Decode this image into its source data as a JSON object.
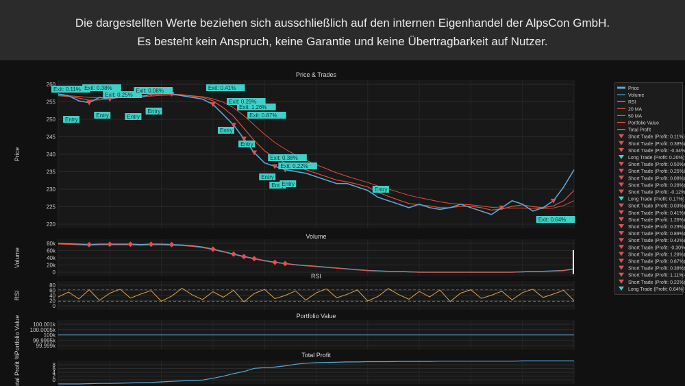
{
  "banner": {
    "line1": "Die dargestellten Werte beziehen sich ausschließlich auf den internen Eigenhandel der AlpsCon GmbH.",
    "line2": "Es besteht kein Anspruch, keine Garantie und keine Übertragbarkeit auf Nutzer."
  },
  "colors": {
    "price": "#5aa8d8",
    "ma20": "#e0503c",
    "ma50": "#e0503c",
    "volume": "#5aa8d8",
    "rsi": "#e0a050",
    "trade_box": "#3fd0c8",
    "sell_marker": "#e05050",
    "portfolio": "#5aa8d8",
    "profit": "#5aa8d8"
  },
  "chart_data": [
    {
      "type": "line",
      "title": "Price & Trades",
      "ylabel": "Price",
      "yticks": [
        "260",
        "255",
        "250",
        "245",
        "240",
        "235",
        "230",
        "225",
        "220"
      ],
      "ylim": [
        218,
        261
      ],
      "x": [
        0,
        2,
        4,
        6,
        8,
        10,
        12,
        14,
        16,
        18,
        20,
        22,
        24,
        26,
        28,
        30,
        32,
        34,
        36,
        38,
        40,
        42,
        44,
        46,
        48,
        50,
        52,
        54,
        56,
        58,
        60,
        62,
        64,
        66,
        68,
        70,
        72,
        74,
        76,
        78,
        80,
        82,
        84,
        86,
        88,
        90,
        92,
        94,
        96,
        98,
        100
      ],
      "series": [
        {
          "name": "Price",
          "values": [
            257,
            256.5,
            255,
            254.5,
            256,
            255.5,
            256.5,
            257,
            256,
            257,
            257.5,
            257,
            256.5,
            256,
            255.5,
            254,
            251,
            248,
            244,
            240,
            237,
            236,
            235,
            234.5,
            234,
            233,
            232,
            231,
            231,
            230,
            229,
            227,
            226,
            225,
            224,
            225,
            224,
            223.5,
            224,
            225,
            224,
            223,
            222,
            224,
            226,
            225,
            223,
            224,
            226,
            230,
            235
          ]
        },
        {
          "name": "20 MA",
          "values": [
            256.5,
            256.3,
            255.8,
            255.2,
            255.3,
            255.6,
            256,
            256.4,
            256.5,
            256.8,
            257,
            257,
            256.8,
            256.4,
            256,
            255,
            253,
            250.5,
            247,
            243.5,
            240.5,
            238.5,
            237,
            236,
            235,
            234,
            233,
            232,
            231.5,
            230.8,
            230,
            228.5,
            227.3,
            226.2,
            225.2,
            224.8,
            224.5,
            224,
            224,
            224.4,
            224.4,
            224,
            223.3,
            223.6,
            224.4,
            224.8,
            224.3,
            224,
            224.5,
            226,
            229
          ]
        },
        {
          "name": "50 MA",
          "values": [
            256.6,
            256.5,
            256.3,
            256,
            255.9,
            255.9,
            256,
            256.1,
            256.2,
            256.4,
            256.6,
            256.7,
            256.7,
            256.5,
            256.2,
            255.6,
            254.6,
            253,
            250.7,
            248,
            245.3,
            242.9,
            241,
            239.3,
            237.8,
            236.5,
            235.3,
            234.1,
            233.1,
            232.2,
            231.3,
            230.3,
            229.4,
            228.5,
            227.6,
            226.9,
            226.3,
            225.7,
            225.2,
            225,
            224.8,
            224.5,
            224.1,
            223.9,
            223.9,
            223.9,
            223.8,
            223.7,
            223.9,
            224.6,
            226
          ]
        }
      ],
      "labels": {
        "entry": "Entry",
        "exits": [
          "Exit: 0.11%",
          "Exit: 0.38%",
          "Exit: 0.25%",
          "Exit: 0.08%",
          "Exit: 0.41%",
          "Exit: 0.29%",
          "Exit: 1.26%",
          "Exit: 0.87%",
          "Exit: 0.38%",
          "Exit: 0.22%",
          "Exit: 0.64%"
        ]
      }
    },
    {
      "type": "line",
      "title": "Volume",
      "ylabel": "Volume",
      "yticks": [
        "80k",
        "60k",
        "40k",
        "20k",
        "0"
      ],
      "ylim": [
        0,
        90
      ],
      "values": [
        80,
        79,
        78,
        77,
        78,
        78,
        78,
        78,
        77,
        78,
        78,
        77,
        76,
        74,
        71,
        66,
        60,
        54,
        48,
        43,
        38,
        34,
        31,
        28,
        26,
        24,
        22,
        20,
        18,
        16,
        14,
        13,
        12,
        12,
        11,
        10,
        10,
        10,
        10,
        10,
        10,
        10,
        10,
        10,
        10,
        11,
        12,
        12,
        13,
        14,
        18
      ]
    },
    {
      "type": "line",
      "title": "RSI",
      "ylabel": "RSI",
      "yticks": [
        "80",
        "60",
        "40",
        "20",
        "0"
      ],
      "ylim": [
        0,
        100
      ],
      "values": [
        45,
        62,
        38,
        70,
        33,
        58,
        72,
        41,
        55,
        67,
        30,
        48,
        75,
        52,
        36,
        63,
        44,
        68,
        28,
        57,
        71,
        39,
        50,
        66,
        34,
        59,
        73,
        42,
        54,
        69,
        31,
        47,
        74,
        53,
        37,
        64,
        45,
        69,
        29,
        58,
        70,
        40,
        51,
        65,
        35,
        60,
        72,
        43,
        55,
        68,
        32
      ]
    },
    {
      "type": "line",
      "title": "Portfolio Value",
      "ylabel": "Portfolio Value",
      "yticks": [
        "100.001k",
        "100.0005k",
        "100k",
        "99.9995k",
        "99.999k"
      ],
      "ylim": [
        -1,
        1
      ],
      "values": [
        0,
        0,
        0,
        0,
        0,
        0,
        0,
        0,
        0,
        0,
        0,
        0,
        0,
        0,
        0,
        0,
        0,
        0,
        0,
        0,
        0,
        0,
        0,
        0,
        0,
        0,
        0,
        0,
        0,
        0,
        0,
        0,
        0,
        0,
        0,
        0,
        0,
        0,
        0,
        0,
        0,
        0,
        0,
        0,
        0,
        0,
        0,
        0,
        0,
        0,
        0
      ]
    },
    {
      "type": "line",
      "title": "Total Profit",
      "ylabel": "Total Profit %",
      "yticks": [
        "8",
        "6",
        "4",
        "2",
        "0"
      ],
      "ylim": [
        0,
        9
      ],
      "values": [
        0,
        0,
        0,
        0.1,
        0.2,
        0.2,
        0.3,
        0.4,
        0.5,
        0.6,
        0.8,
        1.0,
        1.2,
        1.3,
        1.5,
        2.2,
        3.0,
        4.0,
        4.8,
        6.0,
        6.3,
        6.5,
        7.0,
        7.6,
        8.0,
        8.2,
        8.3,
        8.4,
        8.5,
        8.5,
        8.6,
        8.6,
        8.6,
        8.7,
        8.7,
        8.7,
        8.7,
        8.8,
        8.8,
        8.8,
        8.8,
        8.8,
        8.8,
        8.8,
        8.8,
        8.9,
        8.9,
        8.9,
        8.9,
        8.9,
        8.9
      ]
    }
  ],
  "legend": [
    {
      "name": "Price",
      "kind": "price"
    },
    {
      "name": "Volume",
      "kind": "volume"
    },
    {
      "name": "RSI",
      "kind": "rsi"
    },
    {
      "name": "20 MA",
      "kind": "ma"
    },
    {
      "name": "50 MA",
      "kind": "ma"
    },
    {
      "name": "Portfolio Value",
      "kind": "ma"
    },
    {
      "name": "Total Profit",
      "kind": "line"
    },
    {
      "name": "Short Trade (Profit: 0.11%)",
      "kind": "short"
    },
    {
      "name": "Short Trade (Profit: 0.38%)",
      "kind": "short"
    },
    {
      "name": "Short Trade (Profit: -0.34%)",
      "kind": "short"
    },
    {
      "name": "Long Trade (Profit: 0.20%)",
      "kind": "long"
    },
    {
      "name": "Short Trade (Profit: 0.50%)",
      "kind": "short"
    },
    {
      "name": "Short Trade (Profit: 0.25%)",
      "kind": "short"
    },
    {
      "name": "Short Trade (Profit: 0.08%)",
      "kind": "short"
    },
    {
      "name": "Short Trade (Profit: 0.28%)",
      "kind": "short"
    },
    {
      "name": "Short Trade (Profit: -0.12%)",
      "kind": "short"
    },
    {
      "name": "Long Trade (Profit: 0.17%)",
      "kind": "long"
    },
    {
      "name": "Short Trade (Profit: 0.03%)",
      "kind": "short"
    },
    {
      "name": "Short Trade (Profit: 0.41%)",
      "kind": "short"
    },
    {
      "name": "Short Trade (Profit: 1.26%)",
      "kind": "short"
    },
    {
      "name": "Short Trade (Profit: 0.29%)",
      "kind": "short"
    },
    {
      "name": "Short Trade (Profit: 0.89%)",
      "kind": "short"
    },
    {
      "name": "Short Trade (Profit: 0.42%)",
      "kind": "short"
    },
    {
      "name": "Short Trade (Profit: -0.30%)",
      "kind": "short"
    },
    {
      "name": "Short Trade (Profit: 1.28%)",
      "kind": "short"
    },
    {
      "name": "Short Trade (Profit: 0.87%)",
      "kind": "short"
    },
    {
      "name": "Short Trade (Profit: 0.38%)",
      "kind": "short"
    },
    {
      "name": "Short Trade (Profit: 1.11%)",
      "kind": "short"
    },
    {
      "name": "Short Trade (Profit: 0.22%)",
      "kind": "short"
    },
    {
      "name": "Long Trade (Profit: 0.64%)",
      "kind": "long"
    }
  ]
}
